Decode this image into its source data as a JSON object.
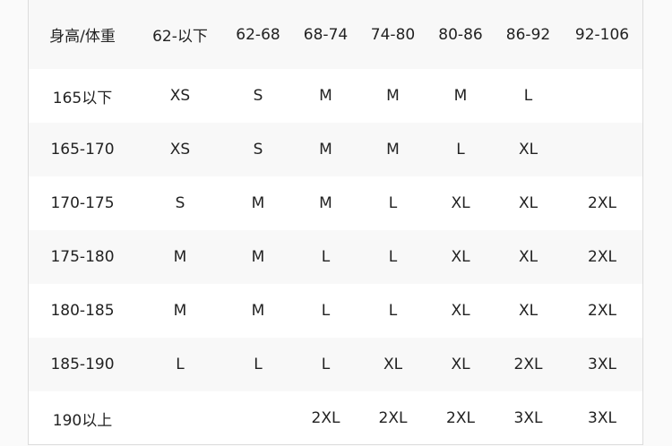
{
  "table": {
    "header": [
      "身高/体重",
      "62-以下",
      "62-68",
      "68-74",
      "74-80",
      "80-86",
      "86-92",
      "92-106"
    ],
    "rows": [
      [
        "165以下",
        "XS",
        "S",
        "M",
        "M",
        "M",
        "L",
        ""
      ],
      [
        "165-170",
        "XS",
        "S",
        "M",
        "M",
        "L",
        "XL",
        ""
      ],
      [
        "170-175",
        "S",
        "M",
        "M",
        "L",
        "XL",
        "XL",
        "2XL"
      ],
      [
        "175-180",
        "M",
        "M",
        "L",
        "L",
        "XL",
        "XL",
        "2XL"
      ],
      [
        "180-185",
        "M",
        "M",
        "L",
        "L",
        "XL",
        "XL",
        "2XL"
      ],
      [
        "185-190",
        "L",
        "L",
        "L",
        "XL",
        "XL",
        "2XL",
        "3XL"
      ],
      [
        "190以上",
        "",
        "",
        "2XL",
        "2XL",
        "2XL",
        "3XL",
        "3XL"
      ]
    ]
  }
}
